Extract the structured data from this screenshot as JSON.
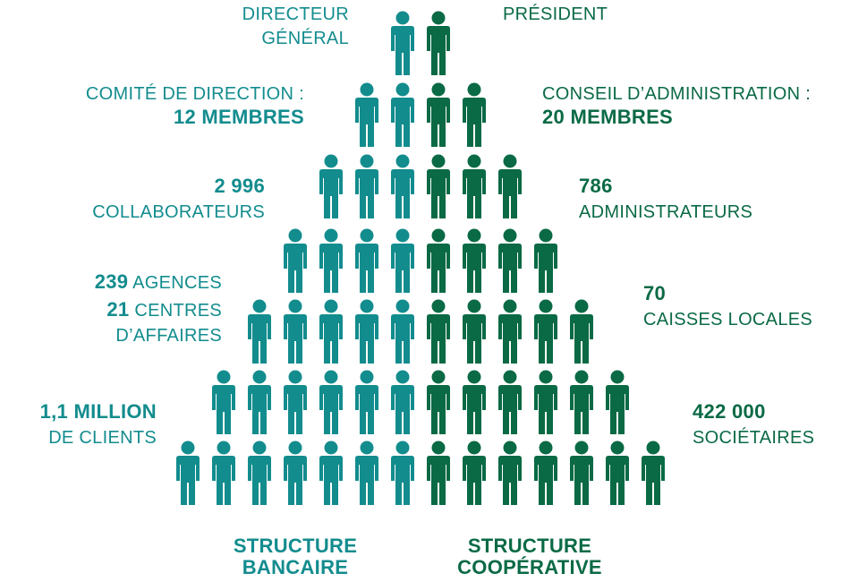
{
  "left_labels": [
    {
      "lines": [
        [
          {
            "text": "DIRECTEUR",
            "bold": false
          }
        ],
        [
          {
            "text": "GÉNÉRAL",
            "bold": false
          }
        ]
      ]
    },
    {
      "lines": [
        [
          {
            "text": "COMITÉ DE DIRECTION :",
            "bold": false
          }
        ],
        [
          {
            "text": "12 MEMBRES",
            "bold": true
          }
        ]
      ]
    },
    {
      "lines": [
        [
          {
            "text": "2 996",
            "bold": true
          }
        ],
        [
          {
            "text": "COLLABORATEURS",
            "bold": false
          }
        ]
      ]
    },
    {
      "lines": [
        [
          {
            "text": "239",
            "bold": true
          },
          {
            "text": " AGENCES",
            "bold": false
          }
        ],
        [
          {
            "text": "21",
            "bold": true
          },
          {
            "text": " CENTRES",
            "bold": false
          }
        ],
        [
          {
            "text": "D’AFFAIRES",
            "bold": false
          }
        ]
      ]
    },
    {
      "lines": [
        [
          {
            "text": "1,1 MILLION",
            "bold": true
          }
        ],
        [
          {
            "text": "DE CLIENTS",
            "bold": false
          }
        ]
      ]
    }
  ],
  "right_labels": [
    {
      "lines": [
        [
          {
            "text": "PRÉSIDENT",
            "bold": false
          }
        ]
      ]
    },
    {
      "lines": [
        [
          {
            "text": "CONSEIL D’ADMINISTRATION :",
            "bold": false
          }
        ],
        [
          {
            "text": "20 MEMBRES",
            "bold": true
          }
        ]
      ]
    },
    {
      "lines": [
        [
          {
            "text": "786",
            "bold": true
          }
        ],
        [
          {
            "text": "ADMINISTRATEURS",
            "bold": false
          }
        ]
      ]
    },
    {
      "lines": [
        [
          {
            "text": "70",
            "bold": true
          }
        ],
        [
          {
            "text": "CAISSES LOCALES",
            "bold": false
          }
        ]
      ]
    },
    {
      "lines": [
        [
          {
            "text": "422 000",
            "bold": true
          }
        ],
        [
          {
            "text": "SOCIÉTAIRES",
            "bold": false
          }
        ]
      ]
    }
  ],
  "footer": {
    "left": [
      "STRUCTURE",
      "BANCAIRE"
    ],
    "right": [
      "STRUCTURE",
      "COOPÉRATIVE"
    ]
  }
}
